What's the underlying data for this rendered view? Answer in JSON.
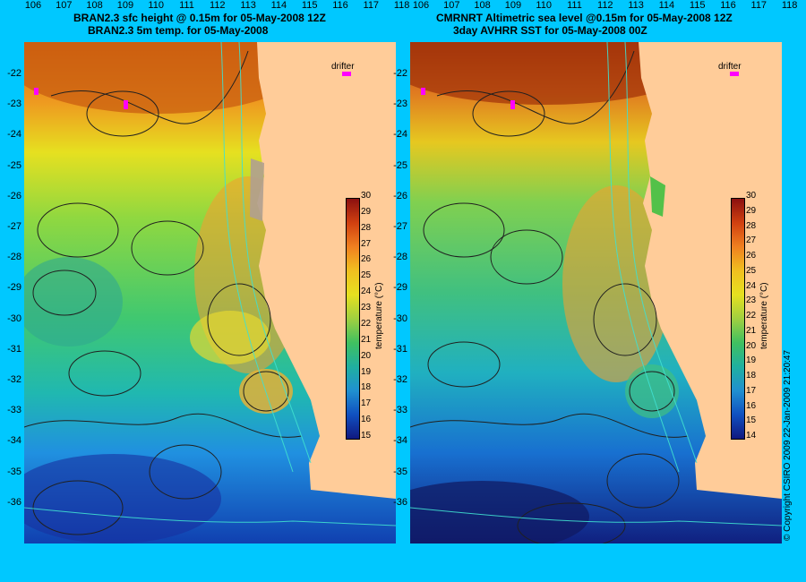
{
  "left_panel": {
    "title_line1": "BRAN2.3 sfc height @ 0.15m for 05-May-2008 12Z",
    "title_line2": "BRAN2.3 5m temp. for 05-May-2008",
    "drifter_label": "drifter",
    "colorbar_ticks": [
      "30",
      "29",
      "28",
      "27",
      "26",
      "25",
      "24",
      "23",
      "22",
      "21",
      "20",
      "19",
      "18",
      "17",
      "16",
      "15"
    ],
    "colorbar_title": "temperature (°C)"
  },
  "right_panel": {
    "title_line1": "CMRNRT Altimetric sea level  @0.15m  for 05-May-2008 12Z",
    "title_line2": "3day AVHRR SST for 05-May-2008 00Z",
    "drifter_label": "drifter",
    "colorbar_ticks": [
      "30",
      "29",
      "28",
      "27",
      "26",
      "25",
      "24",
      "23",
      "22",
      "21",
      "20",
      "19",
      "18",
      "17",
      "16",
      "15",
      "14"
    ],
    "colorbar_title": "temperature (°C)"
  },
  "latitude_labels": [
    "-22",
    "-23",
    "-24",
    "-25",
    "-26",
    "-27",
    "-28",
    "-29",
    "-30",
    "-31",
    "-32",
    "-33",
    "-34",
    "-35",
    "-36"
  ],
  "longitude_labels": [
    "106",
    "107",
    "108",
    "109",
    "110",
    "111",
    "112",
    "113",
    "114",
    "115",
    "116",
    "117",
    "118"
  ],
  "copyright": "© Copyright CSIRO 2009   22-Jan-2009 21:20:47",
  "colors": {
    "background": "#00c8ff",
    "land": "#ffcc99",
    "coast_line": "#40e0d0",
    "drifter": "#ff00ff"
  }
}
